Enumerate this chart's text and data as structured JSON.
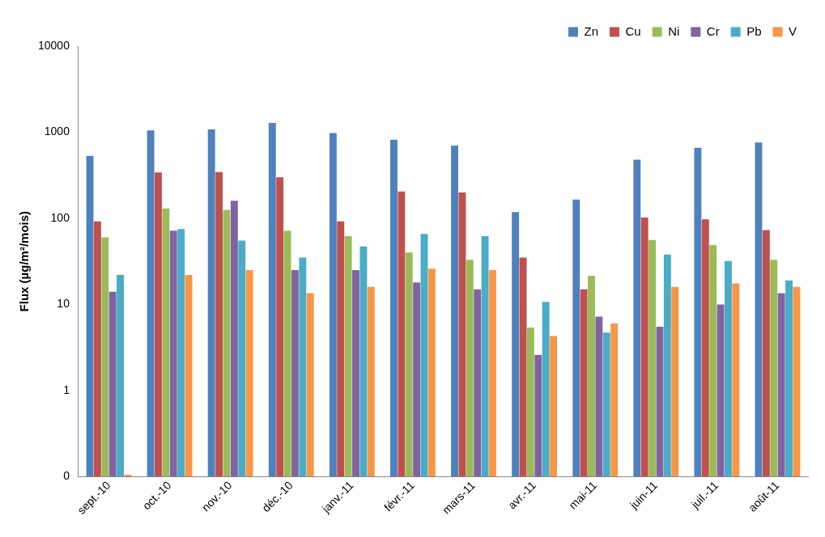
{
  "chart_data": {
    "type": "bar",
    "ylabel": "Flux (µg/m²/mois)",
    "categories": [
      "sept.-10",
      "oct.-10",
      "nov.-10",
      "déc.-10",
      "janv.-11",
      "févr.-11",
      "mars-11",
      "avr.-11",
      "mai-11",
      "juin-11",
      "juil.-11",
      "août-11"
    ],
    "series": [
      {
        "name": "Zn",
        "color": "#4f81bd",
        "values": [
          530,
          1050,
          1080,
          1280,
          980,
          820,
          700,
          118,
          165,
          480,
          660,
          760
        ]
      },
      {
        "name": "Cu",
        "color": "#c0504d",
        "values": [
          92,
          340,
          345,
          300,
          92,
          205,
          200,
          35,
          15,
          102,
          97,
          73
        ]
      },
      {
        "name": "Ni",
        "color": "#9bbb59",
        "values": [
          60,
          130,
          125,
          72,
          62,
          40,
          33,
          5.4,
          21.5,
          56,
          49,
          33
        ]
      },
      {
        "name": "Cr",
        "color": "#8064a2",
        "values": [
          14,
          72,
          160,
          25,
          25,
          18,
          15,
          2.6,
          7.2,
          5.5,
          10,
          13.5
        ]
      },
      {
        "name": "Pb",
        "color": "#4bacc6",
        "values": [
          22,
          75,
          55,
          35,
          47,
          66,
          62,
          10.7,
          4.7,
          38,
          32,
          19
        ]
      },
      {
        "name": "V",
        "color": "#f79646",
        "values": [
          0.105,
          22,
          25,
          13.5,
          16,
          26,
          25,
          4.3,
          6,
          16,
          17.5,
          16
        ]
      }
    ],
    "log": true,
    "ylim": [
      0.1,
      10000
    ],
    "yticks": [
      {
        "value": 0.1,
        "label": "0"
      },
      1,
      10,
      100,
      1000,
      10000
    ],
    "grid": false,
    "legend": "top right"
  }
}
